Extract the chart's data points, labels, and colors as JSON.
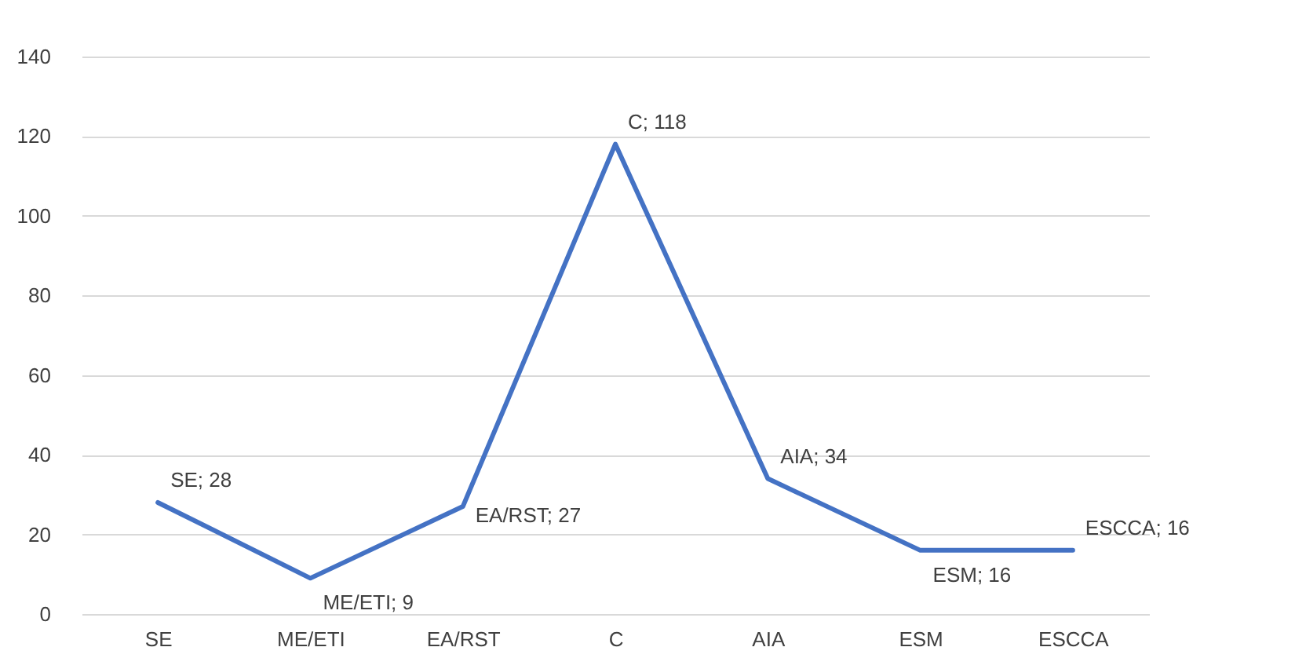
{
  "chart_data": {
    "type": "line",
    "categories": [
      "SE",
      "ME/ETI",
      "EA/RST",
      "C",
      "AIA",
      "ESM",
      "ESCCA"
    ],
    "series": [
      {
        "color": "#4472c4",
        "values": [
          28,
          9,
          27,
          118,
          34,
          16,
          16
        ]
      }
    ],
    "value_labels": [
      "SE; 28",
      "ME/ETI; 9",
      "EA/RST; 27",
      "C; 118",
      "AIA; 34",
      "ESM; 16",
      "ESCCA; 16"
    ],
    "ylim": [
      0,
      140
    ],
    "yticks": [
      0,
      20,
      40,
      60,
      80,
      100,
      120,
      140
    ],
    "grid": "y",
    "marker": "none",
    "line_style": "solid"
  }
}
